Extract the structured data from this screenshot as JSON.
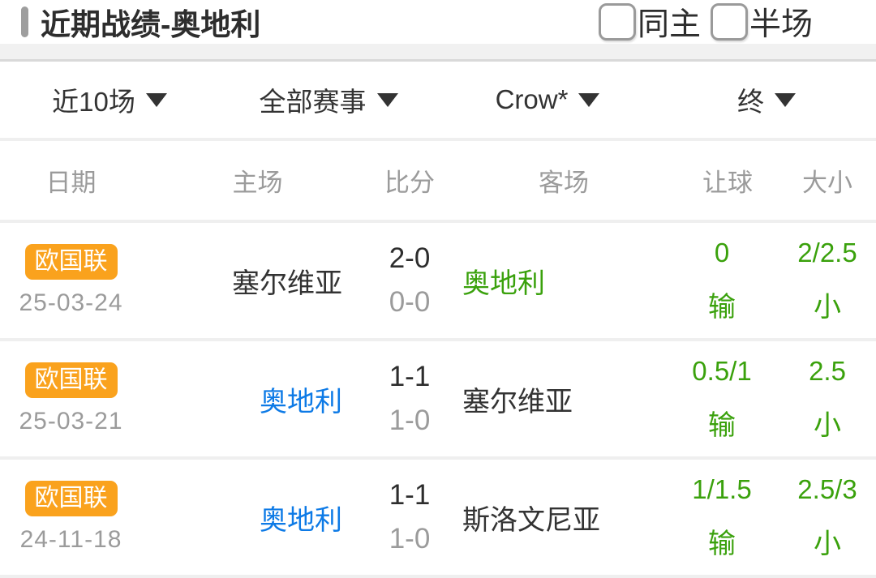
{
  "header": {
    "title": "近期战绩-奥地利",
    "checkboxes": [
      {
        "label": "同主",
        "checked": false
      },
      {
        "label": "半场",
        "checked": false
      }
    ]
  },
  "filters": [
    {
      "label": "近10场"
    },
    {
      "label": "全部赛事"
    },
    {
      "label": "Crow*"
    },
    {
      "label": "终"
    }
  ],
  "table": {
    "columns": [
      "日期",
      "主场",
      "比分",
      "客场",
      "让球",
      "大小"
    ],
    "rows": [
      {
        "league": "欧国联",
        "date": "25-03-24",
        "home": "塞尔维亚",
        "home_color": "dark",
        "score": "2-0",
        "half_score": "0-0",
        "away": "奥地利",
        "away_color": "green",
        "handicap": "0",
        "handicap_result": "输",
        "ou": "2/2.5",
        "ou_result": "小"
      },
      {
        "league": "欧国联",
        "date": "25-03-21",
        "home": "奥地利",
        "home_color": "blue",
        "score": "1-1",
        "half_score": "1-0",
        "away": "塞尔维亚",
        "away_color": "dark",
        "handicap": "0.5/1",
        "handicap_result": "输",
        "ou": "2.5",
        "ou_result": "小"
      },
      {
        "league": "欧国联",
        "date": "24-11-18",
        "home": "奥地利",
        "home_color": "blue",
        "score": "1-1",
        "half_score": "1-0",
        "away": "斯洛文尼亚",
        "away_color": "dark",
        "handicap": "1/1.5",
        "handicap_result": "输",
        "ou": "2.5/3",
        "ou_result": "小"
      }
    ]
  },
  "colors": {
    "badge_orange": "#faa21d",
    "win_green": "#3aa10c",
    "team_blue": "#0d7ae6",
    "text_dark": "#333333",
    "text_gray": "#9b9b9b"
  }
}
